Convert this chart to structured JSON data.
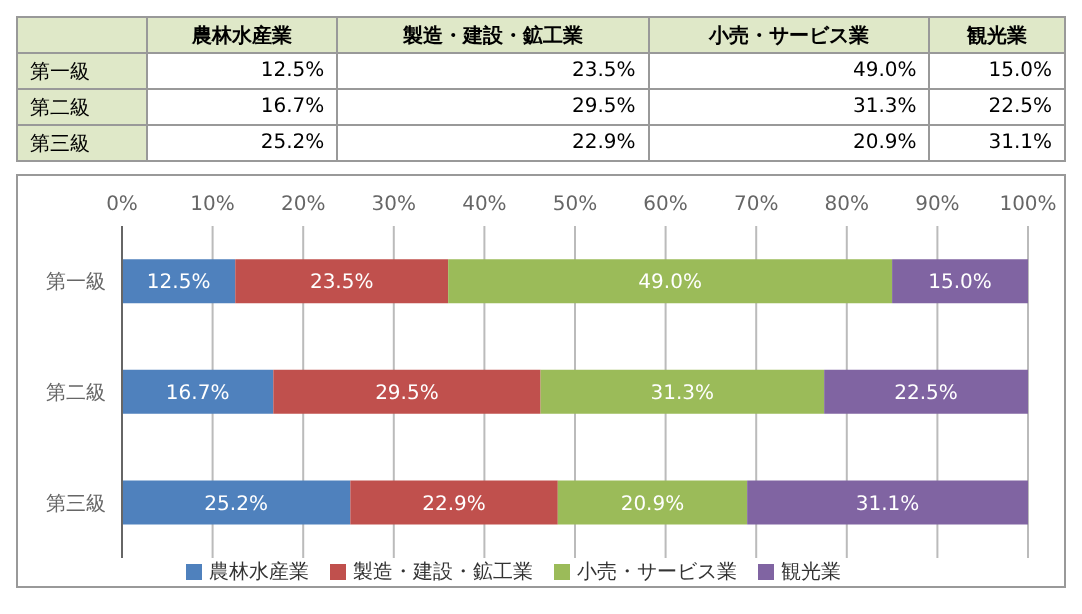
{
  "chart_data": {
    "type": "bar",
    "orientation": "horizontal",
    "stacked": true,
    "categories": [
      "第一級",
      "第二級",
      "第三級"
    ],
    "series": [
      {
        "name": "農林水産業",
        "color": "#4f81bd",
        "values": [
          12.5,
          16.7,
          25.2
        ],
        "value_labels": [
          "12.5%",
          "16.7%",
          "25.2%"
        ]
      },
      {
        "name": "製造・建設・鉱工業",
        "color": "#c0504d",
        "values": [
          23.5,
          29.5,
          22.9
        ],
        "value_labels": [
          "23.5%",
          "29.5%",
          "22.9%"
        ]
      },
      {
        "name": "小売・サービス業",
        "color": "#9bbb59",
        "values": [
          49.0,
          31.3,
          20.9
        ],
        "value_labels": [
          "49.0%",
          "31.3%",
          "20.9%"
        ]
      },
      {
        "name": "観光業",
        "color": "#8064a2",
        "values": [
          15.0,
          22.5,
          31.1
        ],
        "value_labels": [
          "15.0%",
          "22.5%",
          "31.1%"
        ]
      }
    ],
    "xlim": [
      0,
      100
    ],
    "xticks": [
      {
        "value": 0,
        "label": "0%"
      },
      {
        "value": 10,
        "label": "10%"
      },
      {
        "value": 20,
        "label": "20%"
      },
      {
        "value": 30,
        "label": "30%"
      },
      {
        "value": 40,
        "label": "40%"
      },
      {
        "value": 50,
        "label": "50%"
      },
      {
        "value": 60,
        "label": "60%"
      },
      {
        "value": 70,
        "label": "70%"
      },
      {
        "value": 80,
        "label": "80%"
      },
      {
        "value": 90,
        "label": "90%"
      },
      {
        "value": 100,
        "label": "100%"
      }
    ],
    "grid": "x",
    "legend": "bottom"
  }
}
